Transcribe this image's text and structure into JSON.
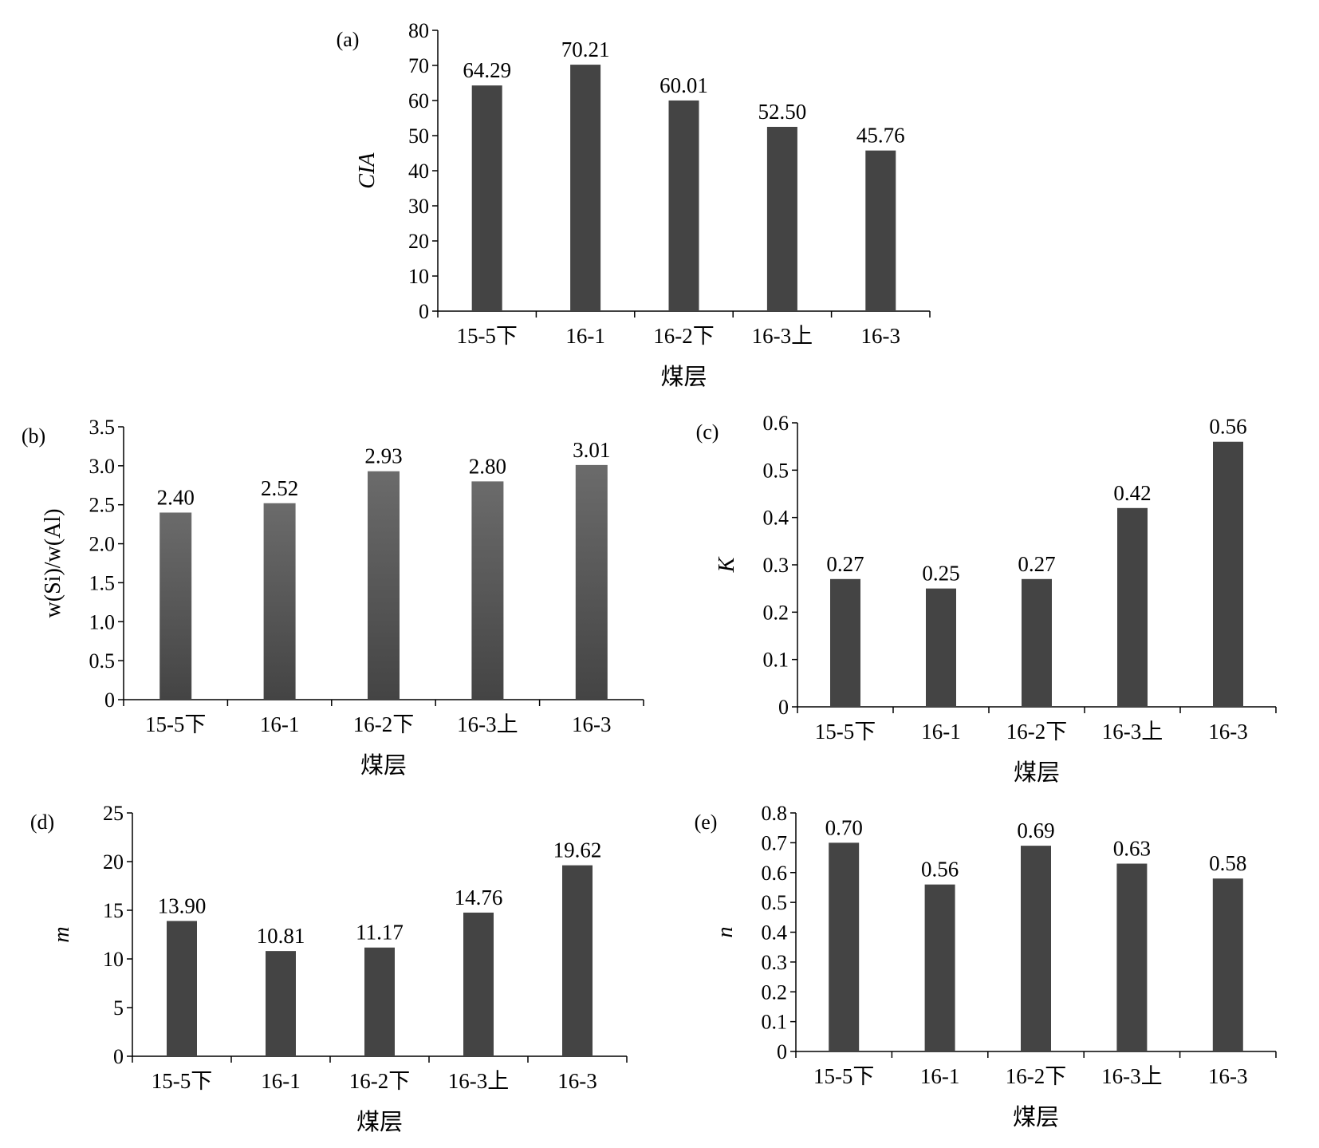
{
  "colors": {
    "bar": "#444444",
    "bar_gradient_top": "#6b6b6b",
    "axis": "#000000"
  },
  "chart_data": [
    {
      "type": "bar",
      "panel_label": "(a)",
      "categories": [
        "15-5下",
        "16-1",
        "16-2下",
        "16-3上",
        "16-3"
      ],
      "values": [
        64.29,
        70.21,
        60.01,
        52.5,
        45.76
      ],
      "value_labels": [
        "64.29",
        "70.21",
        "60.01",
        "52.50",
        "45.76"
      ],
      "ylabel": "CIA",
      "xlabel": "煤层",
      "ylim": [
        0,
        80
      ],
      "yticks": [
        0,
        10,
        20,
        30,
        40,
        50,
        60,
        70,
        80
      ],
      "ytick_labels": [
        "0",
        "10",
        "20",
        "30",
        "40",
        "50",
        "60",
        "70",
        "80"
      ],
      "grid": false
    },
    {
      "type": "bar",
      "panel_label": "(b)",
      "categories": [
        "15-5下",
        "16-1",
        "16-2下",
        "16-3上",
        "16-3"
      ],
      "values": [
        2.4,
        2.52,
        2.93,
        2.8,
        3.01
      ],
      "value_labels": [
        "2.40",
        "2.52",
        "2.93",
        "2.80",
        "3.01"
      ],
      "ylabel": "w(Si)/w(Al)",
      "xlabel": "煤层",
      "ylim": [
        0,
        3.5
      ],
      "yticks": [
        0,
        0.5,
        1.0,
        1.5,
        2.0,
        2.5,
        3.0,
        3.5
      ],
      "ytick_labels": [
        "0",
        "0.5",
        "1.0",
        "1.5",
        "2.0",
        "2.5",
        "3.0",
        "3.5"
      ],
      "grid": false
    },
    {
      "type": "bar",
      "panel_label": "(c)",
      "categories": [
        "15-5下",
        "16-1",
        "16-2下",
        "16-3上",
        "16-3"
      ],
      "values": [
        0.27,
        0.25,
        0.27,
        0.42,
        0.56
      ],
      "value_labels": [
        "0.27",
        "0.25",
        "0.27",
        "0.42",
        "0.56"
      ],
      "ylabel": "K",
      "xlabel": "煤层",
      "ylim": [
        0,
        0.6
      ],
      "yticks": [
        0,
        0.1,
        0.2,
        0.3,
        0.4,
        0.5,
        0.6
      ],
      "ytick_labels": [
        "0",
        "0.1",
        "0.2",
        "0.3",
        "0.4",
        "0.5",
        "0.6"
      ],
      "grid": false
    },
    {
      "type": "bar",
      "panel_label": "(d)",
      "categories": [
        "15-5下",
        "16-1",
        "16-2下",
        "16-3上",
        "16-3"
      ],
      "values": [
        13.9,
        10.81,
        11.17,
        14.76,
        19.62
      ],
      "value_labels": [
        "13.90",
        "10.81",
        "11.17",
        "14.76",
        "19.62"
      ],
      "ylabel": "m",
      "xlabel": "煤层",
      "ylim": [
        0,
        25
      ],
      "yticks": [
        0,
        5,
        10,
        15,
        20,
        25
      ],
      "ytick_labels": [
        "0",
        "5",
        "10",
        "15",
        "20",
        "25"
      ],
      "grid": false
    },
    {
      "type": "bar",
      "panel_label": "(e)",
      "categories": [
        "15-5下",
        "16-1",
        "16-2下",
        "16-3上",
        "16-3"
      ],
      "values": [
        0.7,
        0.56,
        0.69,
        0.63,
        0.58
      ],
      "value_labels": [
        "0.70",
        "0.56",
        "0.69",
        "0.63",
        "0.58"
      ],
      "ylabel": "n",
      "xlabel": "煤层",
      "ylim": [
        0,
        0.8
      ],
      "yticks": [
        0,
        0.1,
        0.2,
        0.3,
        0.4,
        0.5,
        0.6,
        0.7,
        0.8
      ],
      "ytick_labels": [
        "0",
        "0.1",
        "0.2",
        "0.3",
        "0.4",
        "0.5",
        "0.6",
        "0.7",
        "0.8"
      ],
      "grid": false
    }
  ]
}
